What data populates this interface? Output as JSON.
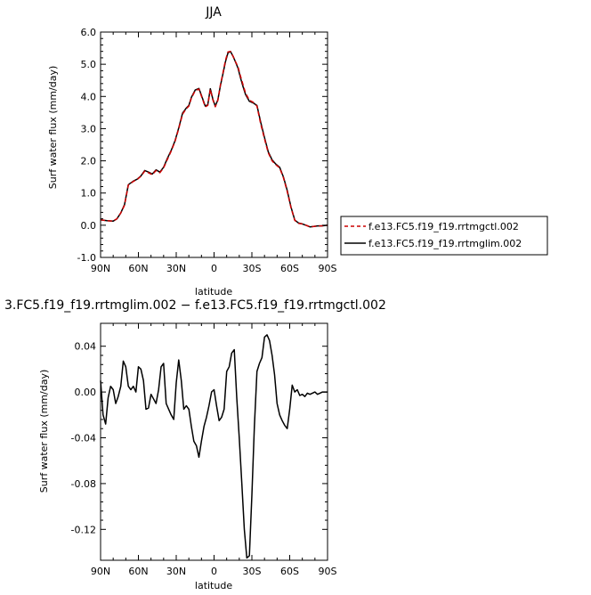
{
  "chart_data": [
    {
      "type": "line",
      "title": "JJA",
      "xlabel": "latitude",
      "ylabel": "Surf water flux (mm/day)",
      "x_ticks": [
        90,
        60,
        30,
        0,
        -30,
        -60,
        -90
      ],
      "x_tick_labels": [
        "90N",
        "60N",
        "30N",
        "0",
        "30S",
        "60S",
        "90S"
      ],
      "xlim": [
        90,
        -90
      ],
      "y_ticks": [
        -1,
        0,
        1,
        2,
        3,
        4,
        5,
        6
      ],
      "y_tick_labels": [
        "-1.0",
        "0.0",
        "1.0",
        "2.0",
        "3.0",
        "4.0",
        "5.0",
        "6.0"
      ],
      "ylim": [
        -1,
        6
      ],
      "legend_position": "right",
      "x": [
        90,
        85,
        80,
        77,
        74,
        71,
        68,
        64,
        61,
        58,
        55,
        52,
        49,
        46,
        43,
        40,
        37,
        34,
        31,
        28,
        25,
        22,
        20,
        18,
        15,
        12,
        9,
        7,
        5,
        3,
        1,
        -1,
        -3,
        -5,
        -7,
        -9,
        -11,
        -13,
        -15,
        -17,
        -19,
        -21,
        -23,
        -25,
        -28,
        -31,
        -34,
        -37,
        -40,
        -43,
        -46,
        -49,
        -52,
        -55,
        -58,
        -61,
        -64,
        -67,
        -70,
        -73,
        -76,
        -79,
        -82,
        -85,
        -90
      ],
      "series": [
        {
          "name": "f.e13.FC5.f19_f19.rrtmgctl.002",
          "color": "#cc0000",
          "dash": true,
          "values": [
            0.17,
            0.14,
            0.13,
            0.2,
            0.38,
            0.62,
            1.25,
            1.36,
            1.42,
            1.52,
            1.68,
            1.63,
            1.57,
            1.7,
            1.63,
            1.78,
            2.05,
            2.3,
            2.6,
            3.0,
            3.45,
            3.62,
            3.7,
            3.95,
            4.18,
            4.23,
            3.9,
            3.68,
            3.72,
            4.22,
            3.9,
            3.68,
            3.88,
            4.35,
            4.72,
            5.12,
            5.38,
            5.4,
            5.25,
            5.08,
            4.92,
            4.62,
            4.36,
            4.1,
            3.88,
            3.82,
            3.7,
            3.15,
            2.68,
            2.25,
            2.0,
            1.88,
            1.78,
            1.48,
            1.05,
            0.55,
            0.15,
            0.06,
            0.04,
            0.0,
            -0.05,
            -0.04,
            -0.02,
            -0.02,
            0.0
          ]
        },
        {
          "name": "f.e13.FC5.f19_f19.rrtmglim.002",
          "color": "#000000",
          "dash": false,
          "values": [
            0.17,
            0.14,
            0.13,
            0.2,
            0.38,
            0.64,
            1.26,
            1.37,
            1.43,
            1.53,
            1.7,
            1.65,
            1.59,
            1.72,
            1.65,
            1.8,
            2.08,
            2.32,
            2.62,
            3.02,
            3.48,
            3.64,
            3.72,
            3.97,
            4.2,
            4.25,
            3.92,
            3.7,
            3.74,
            4.24,
            3.92,
            3.7,
            3.9,
            4.33,
            4.69,
            5.08,
            5.35,
            5.4,
            5.25,
            5.07,
            4.88,
            4.57,
            4.3,
            4.06,
            3.85,
            3.8,
            3.72,
            3.2,
            2.72,
            2.28,
            2.03,
            1.9,
            1.8,
            1.5,
            1.08,
            0.57,
            0.16,
            0.07,
            0.04,
            0.0,
            -0.05,
            -0.04,
            -0.02,
            -0.02,
            0.0
          ]
        }
      ]
    },
    {
      "type": "line",
      "title": "3.FC5.f19_f19.rrtmglim.002 − f.e13.FC5.f19_f19.rrtmgctl.002",
      "xlabel": "latitude",
      "ylabel": "Surf water flux (mm/day)",
      "x_ticks": [
        90,
        60,
        30,
        0,
        -30,
        -60,
        -90
      ],
      "x_tick_labels": [
        "90N",
        "60N",
        "30N",
        "0",
        "30S",
        "60S",
        "90S"
      ],
      "xlim": [
        90,
        -90
      ],
      "y_ticks": [
        -0.12,
        -0.08,
        -0.04,
        0.0,
        0.04
      ],
      "y_tick_labels": [
        "-0.12",
        "-0.08",
        "-0.04",
        "0.00",
        "0.04"
      ],
      "ylim": [
        -0.147,
        0.06
      ],
      "x": [
        90,
        88,
        86,
        84,
        82,
        80,
        78,
        76,
        74,
        72,
        70,
        68,
        66,
        64,
        62,
        60,
        58,
        56,
        54,
        52,
        50,
        48,
        46,
        44,
        42,
        40,
        38,
        36,
        34,
        32,
        30,
        28,
        26,
        24,
        22,
        20,
        18,
        16,
        14,
        12,
        10,
        8,
        6,
        4,
        2,
        0,
        -2,
        -4,
        -6,
        -8,
        -10,
        -12,
        -14,
        -16,
        -18,
        -20,
        -22,
        -24,
        -26,
        -28,
        -30,
        -32,
        -34,
        -36,
        -38,
        -40,
        -42,
        -44,
        -46,
        -48,
        -50,
        -52,
        -54,
        -56,
        -58,
        -60,
        -62,
        -64,
        -66,
        -68,
        -70,
        -72,
        -74,
        -76,
        -78,
        -80,
        -82,
        -84,
        -86,
        -88,
        -90
      ],
      "series": [
        {
          "name": "",
          "color": "#000000",
          "dash": false,
          "values": [
            0.01,
            -0.02,
            -0.028,
            -0.005,
            0.005,
            0.002,
            -0.01,
            -0.004,
            0.005,
            0.027,
            0.022,
            0.005,
            0.002,
            0.005,
            0.0,
            0.022,
            0.02,
            0.01,
            -0.015,
            -0.014,
            -0.002,
            -0.006,
            -0.01,
            0.002,
            0.022,
            0.025,
            -0.01,
            -0.015,
            -0.02,
            -0.024,
            0.008,
            0.028,
            0.01,
            -0.015,
            -0.012,
            -0.015,
            -0.03,
            -0.043,
            -0.047,
            -0.057,
            -0.043,
            -0.03,
            -0.022,
            -0.012,
            0.0,
            0.002,
            -0.012,
            -0.025,
            -0.022,
            -0.015,
            0.018,
            0.022,
            0.034,
            0.037,
            -0.005,
            -0.04,
            -0.08,
            -0.12,
            -0.145,
            -0.143,
            -0.09,
            -0.03,
            0.018,
            0.025,
            0.03,
            0.048,
            0.05,
            0.045,
            0.032,
            0.015,
            -0.01,
            -0.02,
            -0.025,
            -0.029,
            -0.032,
            -0.015,
            0.006,
            0.0,
            0.002,
            -0.003,
            -0.002,
            -0.004,
            -0.001,
            -0.002,
            -0.001,
            0.0,
            -0.002,
            -0.001,
            0.0,
            0.0,
            0.0
          ]
        }
      ]
    }
  ]
}
